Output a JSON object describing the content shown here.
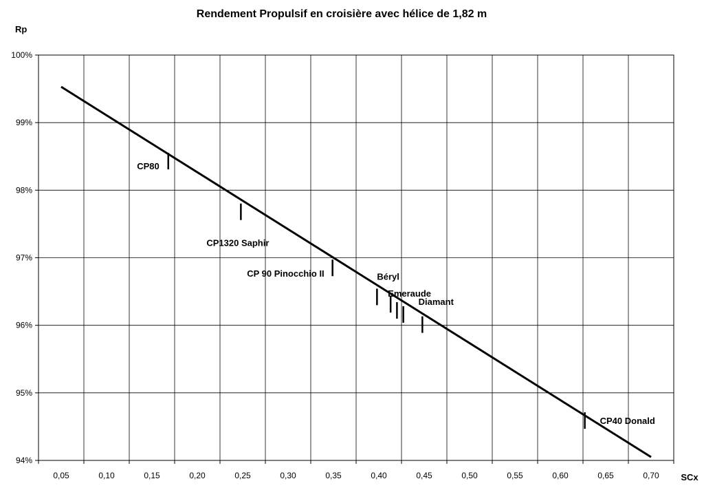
{
  "chart_data": {
    "type": "line",
    "title": "Rendement Propulsif en croisière avec hélice de 1,82 m",
    "xlabel": "SCx",
    "ylabel": "Rp",
    "xlim": [
      0.025,
      0.725
    ],
    "ylim": [
      0.94,
      1.0
    ],
    "x_ticks": [
      0.05,
      0.1,
      0.15,
      0.2,
      0.25,
      0.3,
      0.35,
      0.4,
      0.45,
      0.5,
      0.55,
      0.6,
      0.65,
      0.7
    ],
    "x_tick_labels": [
      "0,05",
      "0,10",
      "0,15",
      "0,20",
      "0,25",
      "0,30",
      "0,35",
      "0,40",
      "0,45",
      "0,50",
      "0,55",
      "0,60",
      "0,65",
      "0,70"
    ],
    "y_ticks": [
      0.94,
      0.95,
      0.96,
      0.97,
      0.98,
      0.99,
      1.0
    ],
    "y_tick_labels": [
      "94%",
      "95%",
      "96%",
      "97%",
      "98%",
      "99%",
      "100%"
    ],
    "grid": true,
    "series": [
      {
        "x": [
          0.05,
          0.7
        ],
        "y": [
          0.9953,
          0.9405
        ]
      }
    ],
    "points": [
      {
        "label": "CP80",
        "x": 0.168,
        "y": 0.9843
      },
      {
        "label": "CP1320 Saphir",
        "x": 0.248,
        "y": 0.9768
      },
      {
        "label": "CP 90 Pinocchio II",
        "x": 0.349,
        "y": 0.9685
      },
      {
        "label": "Béryl",
        "x": 0.398,
        "y": 0.9642
      },
      {
        "label": "Emeraude",
        "x": 0.413,
        "y": 0.9631
      },
      {
        "label": "",
        "x": 0.42,
        "y": 0.9622
      },
      {
        "label": "Diamant",
        "x": 0.427,
        "y": 0.9616
      },
      {
        "label": "",
        "x": 0.448,
        "y": 0.9601
      },
      {
        "label": "CP40 Donald",
        "x": 0.627,
        "y": 0.9459
      }
    ]
  }
}
